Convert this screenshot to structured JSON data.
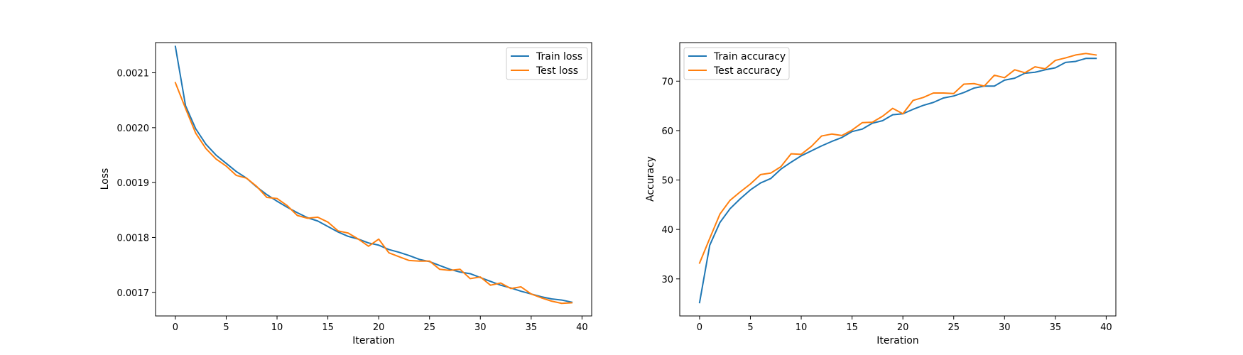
{
  "chart_data": [
    {
      "type": "line",
      "xlabel": "Iteration",
      "ylabel": "Loss",
      "xlim": [
        -1.95,
        40.95
      ],
      "ylim": [
        0.001657,
        0.002155
      ],
      "xticks": [
        0,
        5,
        10,
        15,
        20,
        25,
        30,
        35,
        40
      ],
      "yticks": [
        0.0017,
        0.0018,
        0.0019,
        0.002,
        0.0021
      ],
      "ytick_labels": [
        "0.0017",
        "0.0018",
        "0.0019",
        "0.0020",
        "0.0021"
      ],
      "legend": "top-right",
      "grid": false,
      "x": [
        0,
        1,
        2,
        3,
        4,
        5,
        6,
        7,
        8,
        9,
        10,
        11,
        12,
        13,
        14,
        15,
        16,
        17,
        18,
        19,
        20,
        21,
        22,
        23,
        24,
        25,
        26,
        27,
        28,
        29,
        30,
        31,
        32,
        33,
        34,
        35,
        36,
        37,
        38,
        39
      ],
      "series": [
        {
          "name": "Train loss",
          "color": "#1f77b4",
          "values": [
            0.002148,
            0.00204,
            0.001998,
            0.00197,
            0.00195,
            0.001935,
            0.00192,
            0.001908,
            0.001892,
            0.001878,
            0.001866,
            0.001855,
            0.001845,
            0.001836,
            0.00183,
            0.00182,
            0.00181,
            0.001802,
            0.001797,
            0.00179,
            0.001786,
            0.001778,
            0.001773,
            0.001767,
            0.00176,
            0.001756,
            0.001749,
            0.001742,
            0.001737,
            0.001734,
            0.001727,
            0.00172,
            0.001713,
            0.001708,
            0.001702,
            0.001697,
            0.001692,
            0.001688,
            0.001686,
            0.001682
          ]
        },
        {
          "name": "Test loss",
          "color": "#ff7f0e",
          "values": [
            0.002082,
            0.002035,
            0.00199,
            0.001962,
            0.001943,
            0.00193,
            0.001913,
            0.001908,
            0.001893,
            0.001873,
            0.001871,
            0.001858,
            0.00184,
            0.001835,
            0.001837,
            0.001828,
            0.001812,
            0.001808,
            0.001797,
            0.001784,
            0.001797,
            0.001772,
            0.001765,
            0.001758,
            0.001757,
            0.001757,
            0.001742,
            0.00174,
            0.001742,
            0.001725,
            0.001728,
            0.001713,
            0.001717,
            0.001707,
            0.00171,
            0.001697,
            0.00169,
            0.001684,
            0.00168,
            0.001681
          ]
        }
      ]
    },
    {
      "type": "line",
      "xlabel": "Iteration",
      "ylabel": "Accuracy",
      "xlim": [
        -1.95,
        40.95
      ],
      "ylim": [
        22.5,
        77.8
      ],
      "xticks": [
        0,
        5,
        10,
        15,
        20,
        25,
        30,
        35,
        40
      ],
      "yticks": [
        30,
        40,
        50,
        60,
        70
      ],
      "ytick_labels": [
        "30",
        "40",
        "50",
        "60",
        "70"
      ],
      "legend": "top-left",
      "grid": false,
      "x": [
        0,
        1,
        2,
        3,
        4,
        5,
        6,
        7,
        8,
        9,
        10,
        11,
        12,
        13,
        14,
        15,
        16,
        17,
        18,
        19,
        20,
        21,
        22,
        23,
        24,
        25,
        26,
        27,
        28,
        29,
        30,
        31,
        32,
        33,
        34,
        35,
        36,
        37,
        38,
        39
      ],
      "series": [
        {
          "name": "Train accuracy",
          "color": "#1f77b4",
          "values": [
            25.2,
            36.8,
            41.4,
            44.2,
            46.2,
            48.0,
            49.4,
            50.3,
            52.2,
            53.6,
            54.9,
            55.9,
            56.9,
            57.8,
            58.6,
            59.8,
            60.3,
            61.5,
            62.0,
            63.2,
            63.4,
            64.3,
            65.1,
            65.7,
            66.6,
            67.0,
            67.7,
            68.6,
            69.0,
            69.0,
            70.2,
            70.6,
            71.6,
            71.8,
            72.3,
            72.7,
            73.8,
            74.0,
            74.6,
            74.6
          ]
        },
        {
          "name": "Test accuracy",
          "color": "#ff7f0e",
          "values": [
            33.2,
            38.2,
            43.1,
            45.9,
            47.6,
            49.2,
            51.1,
            51.4,
            52.7,
            55.3,
            55.2,
            56.8,
            58.9,
            59.3,
            59.0,
            60.1,
            61.6,
            61.7,
            62.9,
            64.5,
            63.4,
            66.1,
            66.7,
            67.6,
            67.6,
            67.5,
            69.4,
            69.5,
            69.0,
            71.2,
            70.7,
            72.3,
            71.7,
            72.9,
            72.5,
            74.2,
            74.7,
            75.3,
            75.6,
            75.3
          ]
        }
      ]
    }
  ]
}
